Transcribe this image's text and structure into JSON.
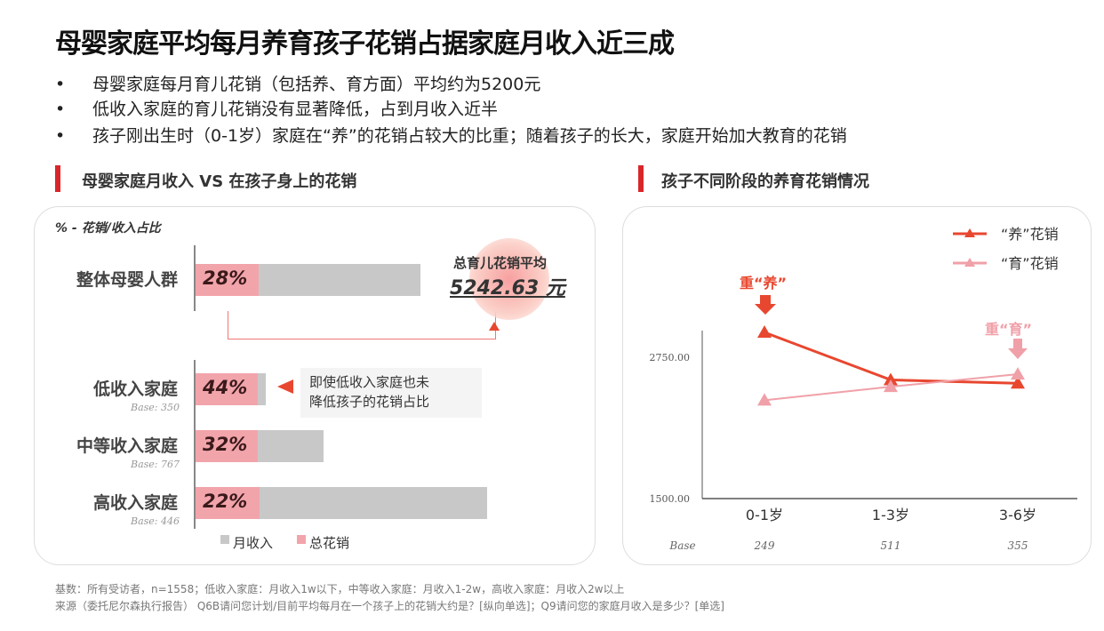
{
  "title": "母婴家庭平均每月养育孩子花销占据家庭月收入近三成",
  "bullets": [
    "母婴家庭每月育儿花销（包括养、育方面）平均约为5200元",
    "低收入家庭的育儿花销没有显著降低，占到月收入近半",
    "孩子刚出生时（0-1岁）家庭在“养”的花销占较大的比重；随着孩子的长大，家庭开始加大教育的花销"
  ],
  "bullet_marker": "•",
  "colors": {
    "accent": "#d9262a",
    "income": "#c8c8c8",
    "spend": "#f2a4ab",
    "yang": "#e8472f",
    "yu": "#f0a0a8"
  },
  "chart_data": [
    {
      "type": "bar",
      "title": "母婴家庭月收入 VS 在孩子身上的花销",
      "subtitle": "% - 花销/收入占比",
      "categories": [
        "整体母婴人群",
        "低收入家庭",
        "中等收入家庭",
        "高收入家庭"
      ],
      "bases": [
        "",
        "Base: 350",
        "Base: 767",
        "Base: 446"
      ],
      "series": [
        {
          "name": "月收入",
          "values_relative": [
            77,
            24,
            44,
            100
          ]
        },
        {
          "name": "总花销",
          "share_percent": [
            28,
            44,
            32,
            22
          ]
        }
      ],
      "labels": [
        "28%",
        "44%",
        "32%",
        "22%"
      ],
      "annotation_avg_label": "总育儿花销平均",
      "annotation_avg_value": "5242.63 元",
      "annotation_callout": [
        "即使低收入家庭也未",
        "降低孩子的花销占比"
      ]
    },
    {
      "type": "line",
      "title": "孩子不同阶段的养育花销情况",
      "categories": [
        "0-1岁",
        "1-3岁",
        "3-6岁"
      ],
      "bases_label": "Base",
      "bases": [
        "249",
        "511",
        "355"
      ],
      "yticks": [
        "2750.00",
        "1500.00"
      ],
      "ylim": [
        1500,
        3000
      ],
      "series": [
        {
          "name": "“养”花销",
          "values": [
            2970,
            2550,
            2520
          ]
        },
        {
          "name": "“育”花销",
          "values": [
            2370,
            2490,
            2600
          ]
        }
      ],
      "annotations": [
        "重“养”",
        "重“育”"
      ],
      "legend": "top-right"
    }
  ],
  "footnotes": [
    "基数：所有受访者，n=1558；低收入家庭：月收入1w以下，中等收入家庭：月收入1-2w，高收入家庭：月收入2w以上",
    "来源（委托尼尔森执行报告）    Q6B请问您计划/目前平均每月在一个孩子上的花销大约是？[纵向单选]；Q9请问您的家庭月收入是多少？[单选]"
  ]
}
